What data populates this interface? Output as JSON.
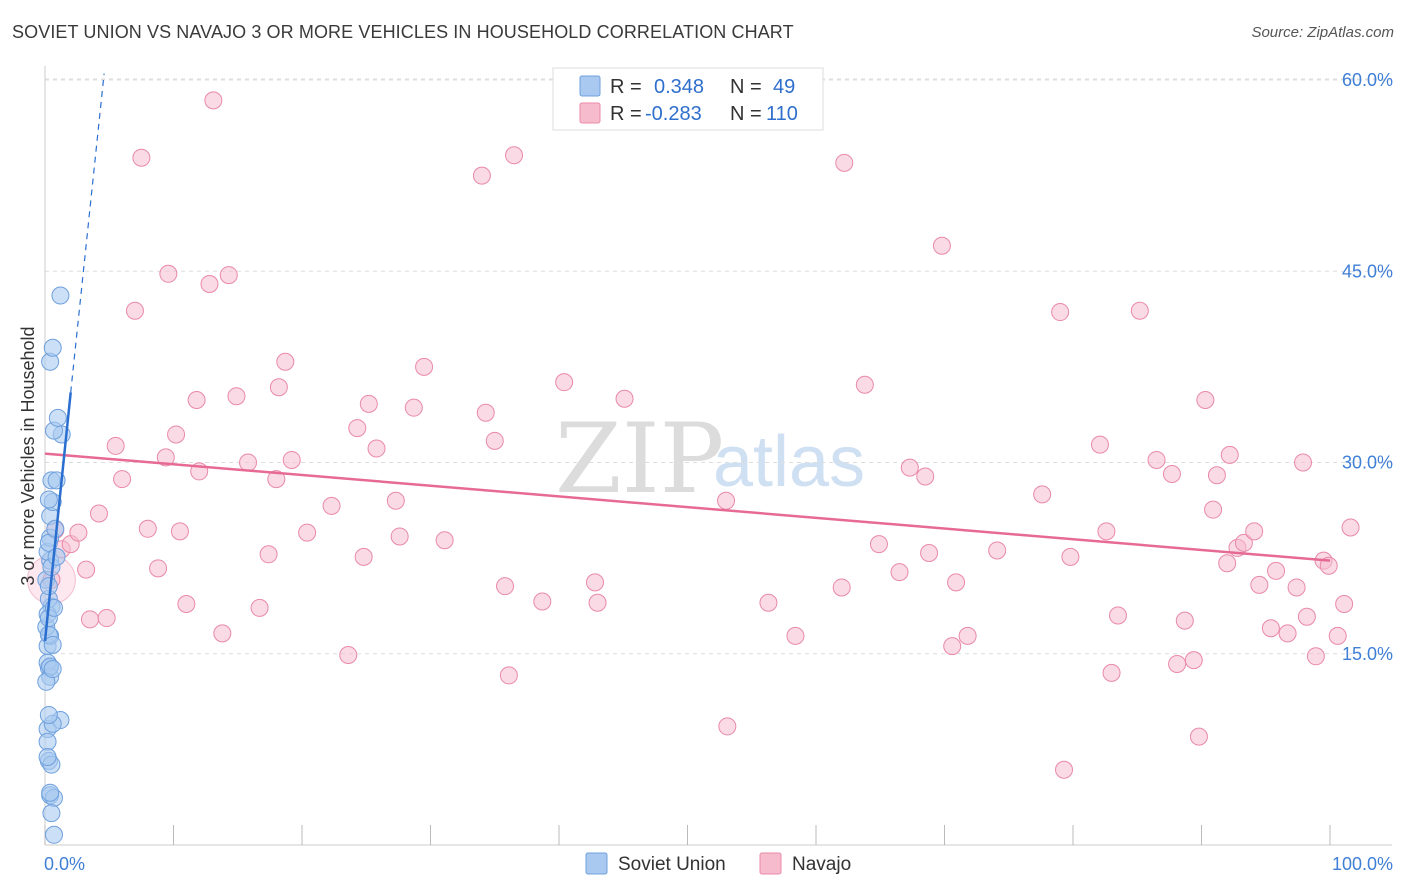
{
  "title": "SOVIET UNION VS NAVAJO 3 OR MORE VEHICLES IN HOUSEHOLD CORRELATION CHART",
  "source": "Source: ZipAtlas.com",
  "watermark": {
    "zip": "ZIP",
    "atlas": "atlas"
  },
  "legend": {
    "rows": [
      {
        "r_label": "R =",
        "r_value": "0.348",
        "n_label": "N =",
        "n_value": "49",
        "color": "#a9c9f0"
      },
      {
        "r_label": "R =",
        "r_value": "-0.283",
        "n_label": "N =",
        "n_value": "110",
        "color": "#f6bccd"
      }
    ]
  },
  "bottom_legend": [
    {
      "label": "Soviet Union",
      "color": "#a9c9f0"
    },
    {
      "label": "Navajo",
      "color": "#f6bccd"
    }
  ],
  "colors": {
    "soviet_fill": "#a9c9f0",
    "soviet_stroke": "#6fa0dd",
    "soviet_line": "#2a6fd0",
    "navajo_fill": "#f6bccd",
    "navajo_stroke": "#e98aa8",
    "navajo_line": "#e66a94",
    "grid": "#dddddd",
    "tick_label": "#3f7fd6"
  },
  "chart_data": {
    "type": "scatter",
    "title": "SOVIET UNION VS NAVAJO 3 OR MORE VEHICLES IN HOUSEHOLD CORRELATION CHART",
    "xlabel": "",
    "ylabel": "3 or more Vehicles in Household",
    "xlim": [
      0,
      100
    ],
    "ylim": [
      0,
      62
    ],
    "x_ticks": [
      {
        "value": 0,
        "label": "0.0%"
      },
      {
        "value": 100,
        "label": "100.0%"
      }
    ],
    "y_ticks": [
      {
        "value": 15,
        "label": "15.0%"
      },
      {
        "value": 30,
        "label": "30.0%"
      },
      {
        "value": 45,
        "label": "45.0%"
      },
      {
        "value": 60,
        "label": "60.0%"
      }
    ],
    "grid": true,
    "legend_position": "top-center",
    "series": [
      {
        "name": "Soviet Union",
        "r": 0.348,
        "n": 49,
        "trend": {
          "x": [
            0,
            2.0
          ],
          "y": [
            16.0,
            35.5
          ],
          "dashed_extension": {
            "x": [
              2.0,
              4.6
            ],
            "y": [
              35.5,
              60.5
            ]
          }
        },
        "points": [
          [
            0.2,
            15.6
          ],
          [
            0.3,
            13.9
          ],
          [
            0.2,
            14.3
          ],
          [
            0.4,
            16.4
          ],
          [
            0.1,
            17.1
          ],
          [
            0.3,
            16.5
          ],
          [
            0.5,
            18.7
          ],
          [
            0.2,
            18.1
          ],
          [
            0.3,
            19.3
          ],
          [
            0.4,
            22.3
          ],
          [
            0.2,
            23.0
          ],
          [
            0.4,
            24.1
          ],
          [
            0.3,
            23.7
          ],
          [
            0.4,
            25.8
          ],
          [
            0.6,
            26.9
          ],
          [
            0.3,
            27.1
          ],
          [
            0.5,
            28.6
          ],
          [
            0.9,
            28.6
          ],
          [
            1.3,
            32.2
          ],
          [
            0.7,
            32.5
          ],
          [
            1.0,
            33.5
          ],
          [
            0.4,
            37.9
          ],
          [
            0.6,
            39.0
          ],
          [
            1.2,
            43.1
          ],
          [
            0.4,
            13.2
          ],
          [
            0.2,
            9.1
          ],
          [
            1.2,
            9.8
          ],
          [
            0.6,
            9.5
          ],
          [
            0.2,
            8.1
          ],
          [
            0.3,
            6.6
          ],
          [
            0.5,
            6.3
          ],
          [
            0.4,
            3.9
          ],
          [
            0.7,
            3.7
          ],
          [
            0.5,
            2.5
          ],
          [
            0.7,
            0.8
          ],
          [
            0.1,
            20.8
          ],
          [
            0.3,
            20.3
          ],
          [
            0.6,
            15.7
          ],
          [
            0.4,
            14.0
          ],
          [
            0.1,
            12.8
          ],
          [
            0.5,
            21.8
          ],
          [
            0.8,
            24.8
          ],
          [
            0.3,
            17.8
          ],
          [
            0.6,
            13.8
          ],
          [
            0.2,
            6.9
          ],
          [
            0.4,
            4.1
          ],
          [
            0.9,
            22.6
          ],
          [
            0.3,
            10.2
          ],
          [
            0.7,
            18.6
          ]
        ]
      },
      {
        "name": "Navajo",
        "r": -0.283,
        "n": 110,
        "trend": {
          "x": [
            0,
            100
          ],
          "y": [
            30.7,
            22.3
          ]
        },
        "points": [
          [
            0.5,
            20.8
          ],
          [
            0.8,
            24.7
          ],
          [
            1.3,
            23.2
          ],
          [
            2.0,
            23.6
          ],
          [
            2.6,
            24.5
          ],
          [
            3.2,
            21.6
          ],
          [
            3.5,
            17.7
          ],
          [
            4.2,
            26.0
          ],
          [
            4.8,
            17.8
          ],
          [
            5.5,
            31.3
          ],
          [
            6.0,
            28.7
          ],
          [
            7.0,
            41.9
          ],
          [
            7.5,
            53.9
          ],
          [
            8.0,
            24.8
          ],
          [
            8.8,
            21.7
          ],
          [
            9.4,
            30.4
          ],
          [
            9.6,
            44.8
          ],
          [
            10.2,
            32.2
          ],
          [
            10.5,
            24.6
          ],
          [
            11.0,
            18.9
          ],
          [
            11.8,
            34.9
          ],
          [
            12.0,
            29.3
          ],
          [
            12.8,
            44.0
          ],
          [
            13.1,
            58.4
          ],
          [
            13.8,
            16.6
          ],
          [
            14.3,
            44.7
          ],
          [
            14.9,
            35.2
          ],
          [
            15.8,
            30.0
          ],
          [
            16.7,
            18.6
          ],
          [
            17.4,
            22.8
          ],
          [
            18.0,
            28.7
          ],
          [
            18.2,
            35.9
          ],
          [
            18.7,
            37.9
          ],
          [
            19.2,
            30.2
          ],
          [
            20.4,
            24.5
          ],
          [
            22.3,
            26.6
          ],
          [
            23.6,
            14.9
          ],
          [
            24.3,
            32.7
          ],
          [
            24.8,
            22.6
          ],
          [
            25.2,
            34.6
          ],
          [
            25.8,
            31.1
          ],
          [
            27.3,
            27.0
          ],
          [
            27.6,
            24.2
          ],
          [
            28.7,
            34.3
          ],
          [
            29.5,
            37.5
          ],
          [
            31.1,
            23.9
          ],
          [
            34.0,
            52.5
          ],
          [
            34.3,
            33.9
          ],
          [
            35.0,
            31.7
          ],
          [
            35.8,
            20.3
          ],
          [
            36.1,
            13.3
          ],
          [
            36.5,
            54.1
          ],
          [
            38.7,
            19.1
          ],
          [
            40.4,
            36.3
          ],
          [
            42.8,
            20.6
          ],
          [
            43.0,
            19.0
          ],
          [
            45.1,
            35.0
          ],
          [
            53.0,
            27.0
          ],
          [
            53.1,
            9.3
          ],
          [
            56.3,
            19.0
          ],
          [
            58.4,
            16.4
          ],
          [
            62.0,
            20.2
          ],
          [
            62.2,
            53.5
          ],
          [
            63.8,
            36.1
          ],
          [
            64.9,
            23.6
          ],
          [
            67.3,
            29.6
          ],
          [
            68.5,
            28.9
          ],
          [
            68.8,
            22.9
          ],
          [
            69.8,
            47.0
          ],
          [
            70.6,
            15.6
          ],
          [
            70.9,
            20.6
          ],
          [
            71.8,
            16.4
          ],
          [
            74.1,
            23.1
          ],
          [
            77.6,
            27.5
          ],
          [
            79.0,
            41.8
          ],
          [
            79.3,
            5.9
          ],
          [
            79.8,
            22.6
          ],
          [
            82.1,
            31.4
          ],
          [
            82.6,
            24.6
          ],
          [
            83.0,
            13.5
          ],
          [
            83.5,
            18.0
          ],
          [
            85.2,
            41.9
          ],
          [
            86.5,
            30.2
          ],
          [
            87.7,
            29.1
          ],
          [
            88.1,
            14.2
          ],
          [
            88.7,
            17.6
          ],
          [
            89.4,
            14.5
          ],
          [
            89.8,
            8.5
          ],
          [
            90.3,
            34.9
          ],
          [
            90.9,
            26.3
          ],
          [
            91.2,
            29.0
          ],
          [
            92.0,
            22.1
          ],
          [
            92.8,
            23.3
          ],
          [
            93.3,
            23.7
          ],
          [
            94.1,
            24.6
          ],
          [
            94.5,
            20.4
          ],
          [
            95.4,
            17.0
          ],
          [
            95.8,
            21.5
          ],
          [
            96.7,
            16.6
          ],
          [
            97.4,
            20.2
          ],
          [
            97.9,
            30.0
          ],
          [
            98.2,
            17.9
          ],
          [
            98.9,
            14.8
          ],
          [
            99.5,
            22.3
          ],
          [
            99.9,
            21.9
          ],
          [
            100.6,
            16.4
          ],
          [
            101.1,
            18.9
          ],
          [
            101.6,
            24.9
          ],
          [
            92.2,
            30.6
          ],
          [
            66.5,
            21.4
          ]
        ]
      }
    ]
  }
}
